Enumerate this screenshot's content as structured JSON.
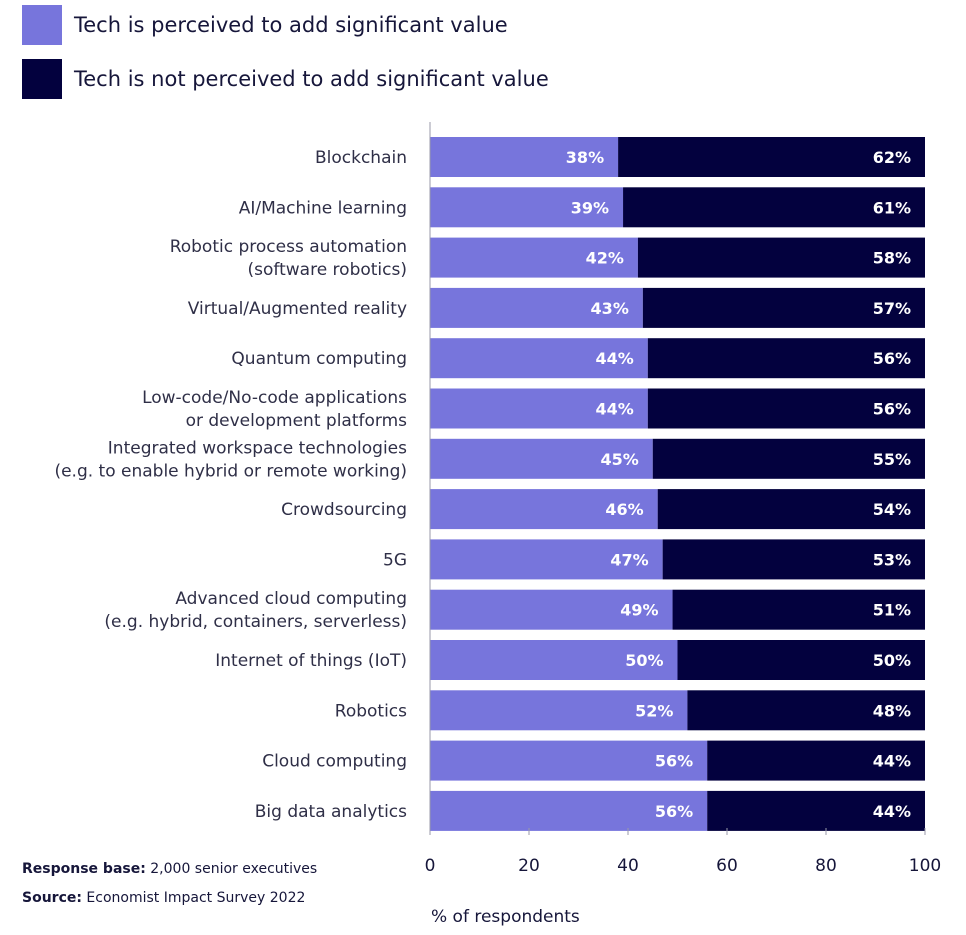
{
  "legend": {
    "items": [
      {
        "label": "Tech is perceived to add significant value",
        "color": "#7775dc"
      },
      {
        "label": "Tech is not perceived to add significant value",
        "color": "#03013e"
      }
    ]
  },
  "footnotes": {
    "base_label": "Response base:",
    "base_value": "2,000 senior executives",
    "source_label": "Source:",
    "source_value": "Economist Impact Survey 2022"
  },
  "chart_data": {
    "type": "bar",
    "orientation": "horizontal",
    "stacked": true,
    "categories": [
      [
        "Blockchain"
      ],
      [
        "AI/Machine learning"
      ],
      [
        "Robotic process automation",
        "(software robotics)"
      ],
      [
        "Virtual/Augmented reality"
      ],
      [
        "Quantum computing"
      ],
      [
        "Low-code/No-code applications",
        "or development platforms"
      ],
      [
        "Integrated workspace technologies",
        "(e.g. to enable hybrid or remote working)"
      ],
      [
        "Crowdsourcing"
      ],
      [
        "5G"
      ],
      [
        "Advanced cloud computing",
        "(e.g. hybrid, containers, serverless)"
      ],
      [
        "Internet of things (IoT)"
      ],
      [
        "Robotics"
      ],
      [
        "Cloud computing"
      ],
      [
        "Big data analytics"
      ]
    ],
    "series": [
      {
        "name": "Tech is perceived to add significant value",
        "color": "#7775dc",
        "values": [
          38,
          39,
          42,
          43,
          44,
          44,
          45,
          46,
          47,
          49,
          50,
          52,
          56,
          56
        ],
        "labels": [
          "38%",
          "39%",
          "42%",
          "43%",
          "44%",
          "44%",
          "45%",
          "46%",
          "47%",
          "49%",
          "50%",
          "52%",
          "56%",
          "56%"
        ]
      },
      {
        "name": "Tech is not perceived to add significant value",
        "color": "#03013e",
        "values": [
          62,
          61,
          58,
          57,
          56,
          56,
          55,
          54,
          53,
          51,
          50,
          48,
          44,
          44
        ],
        "labels": [
          "62%",
          "61%",
          "58%",
          "57%",
          "56%",
          "56%",
          "55%",
          "54%",
          "53%",
          "51%",
          "50%",
          "48%",
          "44%",
          "44%"
        ]
      }
    ],
    "xlim": [
      0,
      100
    ],
    "xticks": [
      "0",
      "20",
      "40",
      "60",
      "80",
      "100"
    ],
    "xlabel": "% of respondents",
    "grid": false,
    "legend_position": "top-left"
  }
}
